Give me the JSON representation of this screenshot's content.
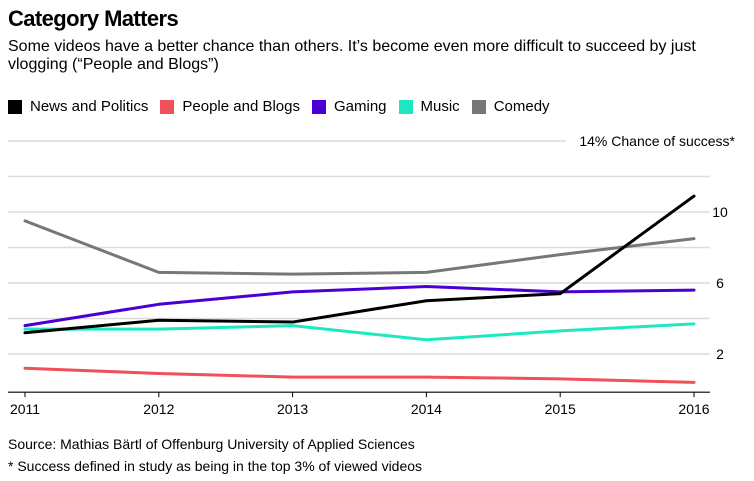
{
  "title": "Category Matters",
  "subtitle": "Some videos have a better chance than others. It’s become even more difficult to succeed by just vlogging (“People and Blogs”)",
  "source": "Source: Mathias Bärtl of Offenburg University of Applied Sciences",
  "footnote": "* Success defined in study as being in the top 3% of viewed videos",
  "chart_data": {
    "type": "line",
    "x": [
      "2011",
      "2012",
      "2013",
      "2014",
      "2015",
      "2016"
    ],
    "series": [
      {
        "name": "News and Politics",
        "color": "#000000",
        "values": [
          3.2,
          3.9,
          3.8,
          5.0,
          5.4,
          10.9
        ]
      },
      {
        "name": "People and Blogs",
        "color": "#f0505a",
        "values": [
          1.2,
          0.9,
          0.7,
          0.7,
          0.6,
          0.4
        ]
      },
      {
        "name": "Gaming",
        "color": "#4a00d4",
        "values": [
          3.6,
          4.8,
          5.5,
          5.8,
          5.5,
          5.6
        ]
      },
      {
        "name": "Music",
        "color": "#1ee8c0",
        "values": [
          3.4,
          3.4,
          3.6,
          2.8,
          3.3,
          3.7
        ]
      },
      {
        "name": "Comedy",
        "color": "#777777",
        "values": [
          9.5,
          6.6,
          6.5,
          6.6,
          7.6,
          8.5
        ]
      }
    ],
    "yticks": [
      2,
      6,
      10,
      14
    ],
    "ytick_labels": [
      "2",
      "6",
      "10",
      "14% Chance of success*"
    ],
    "ylim": [
      0,
      14
    ],
    "grid": true,
    "legend_position": "top-left"
  }
}
